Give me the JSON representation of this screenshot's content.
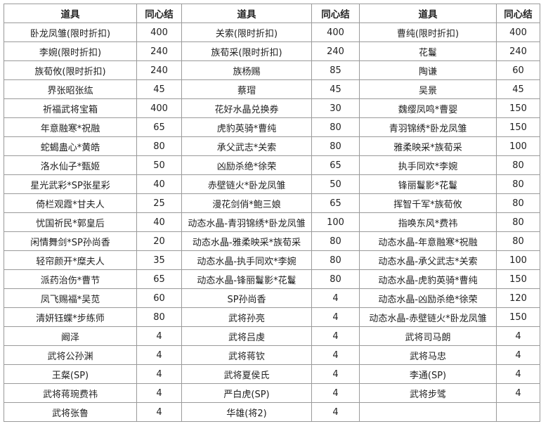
{
  "table": {
    "headers": [
      "道具",
      "同心结",
      "道具",
      "同心结",
      "道具",
      "同心结"
    ],
    "rows": [
      [
        "卧龙凤雏(限时折扣)",
        "400",
        "关索(限时折扣)",
        "400",
        "曹纯(限时折扣)",
        "400"
      ],
      [
        "李婉(限时折扣)",
        "240",
        "族荀采(限时折扣)",
        "240",
        "花鬘",
        "240"
      ],
      [
        "族荀攸(限时折扣)",
        "240",
        "族杨赐",
        "85",
        "陶谦",
        "60"
      ],
      [
        "界张昭张纮",
        "45",
        "蔡瑁",
        "45",
        "吴景",
        "45"
      ],
      [
        "祈福武将宝箱",
        "400",
        "花好水晶兑换券",
        "30",
        "魏缨凤鸣*曹婴",
        "150"
      ],
      [
        "年意融寒*祝融",
        "65",
        "虎豹英骑*曹纯",
        "80",
        "青羽锦绣*卧龙凤雏",
        "150"
      ],
      [
        "蛇蝎蛊心*黄皓",
        "80",
        "承父武志*关索",
        "80",
        "雅柔映采*族荀采",
        "100"
      ],
      [
        "洛水仙子*甄姬",
        "50",
        "凶励杀绝*徐荣",
        "65",
        "执手同欢*李婉",
        "80"
      ],
      [
        "星光武彩*SP张星彩",
        "40",
        "赤壁链火*卧龙凤雏",
        "50",
        "锋丽鬘影*花鬘",
        "80"
      ],
      [
        "倚栏观霞*甘夫人",
        "25",
        "漫花剑俏*鲍三娘",
        "65",
        "挥智千军*族荀攸",
        "80"
      ],
      [
        "忧国祈民*郭皇后",
        "40",
        "动态水晶-青羽锦绣*卧龙凤雏",
        "100",
        "指唤东风*费祎",
        "80"
      ],
      [
        "闲情舞剑*SP孙尚香",
        "20",
        "动态水晶-雅柔映采*族荀采",
        "80",
        "动态水晶-年意融寒*祝融",
        "80"
      ],
      [
        "轻帘颜开*糜夫人",
        "35",
        "动态水晶-执手同欢*李婉",
        "80",
        "动态水晶-承父武志*关索",
        "100"
      ],
      [
        "派药治伤*曹节",
        "65",
        "动态水晶-锋丽鬘影*花鬘",
        "80",
        "动态水晶-虎豹英骑*曹纯",
        "150"
      ],
      [
        "凤飞赐福*吴苋",
        "60",
        "SP孙尚香",
        "4",
        "动态水晶-凶励杀绝*徐荣",
        "120"
      ],
      [
        "清妍钰蝶*步练师",
        "80",
        "武将孙亮",
        "4",
        "动态水晶-赤壁链火*卧龙凤雏",
        "150"
      ],
      [
        "阚泽",
        "4",
        "武将吕虔",
        "4",
        "武将司马朗",
        "4"
      ],
      [
        "武将公孙渊",
        "4",
        "武将蒋钦",
        "4",
        "武将马忠",
        "4"
      ],
      [
        "王粲(SP)",
        "4",
        "武将夏侯氏",
        "4",
        "李通(SP)",
        "4"
      ],
      [
        "武将蒋琬费祎",
        "4",
        "严白虎(SP)",
        "4",
        "武将步骘",
        "4"
      ],
      [
        "武将张鲁",
        "4",
        "华雄(将2)",
        "4",
        "",
        ""
      ]
    ]
  }
}
